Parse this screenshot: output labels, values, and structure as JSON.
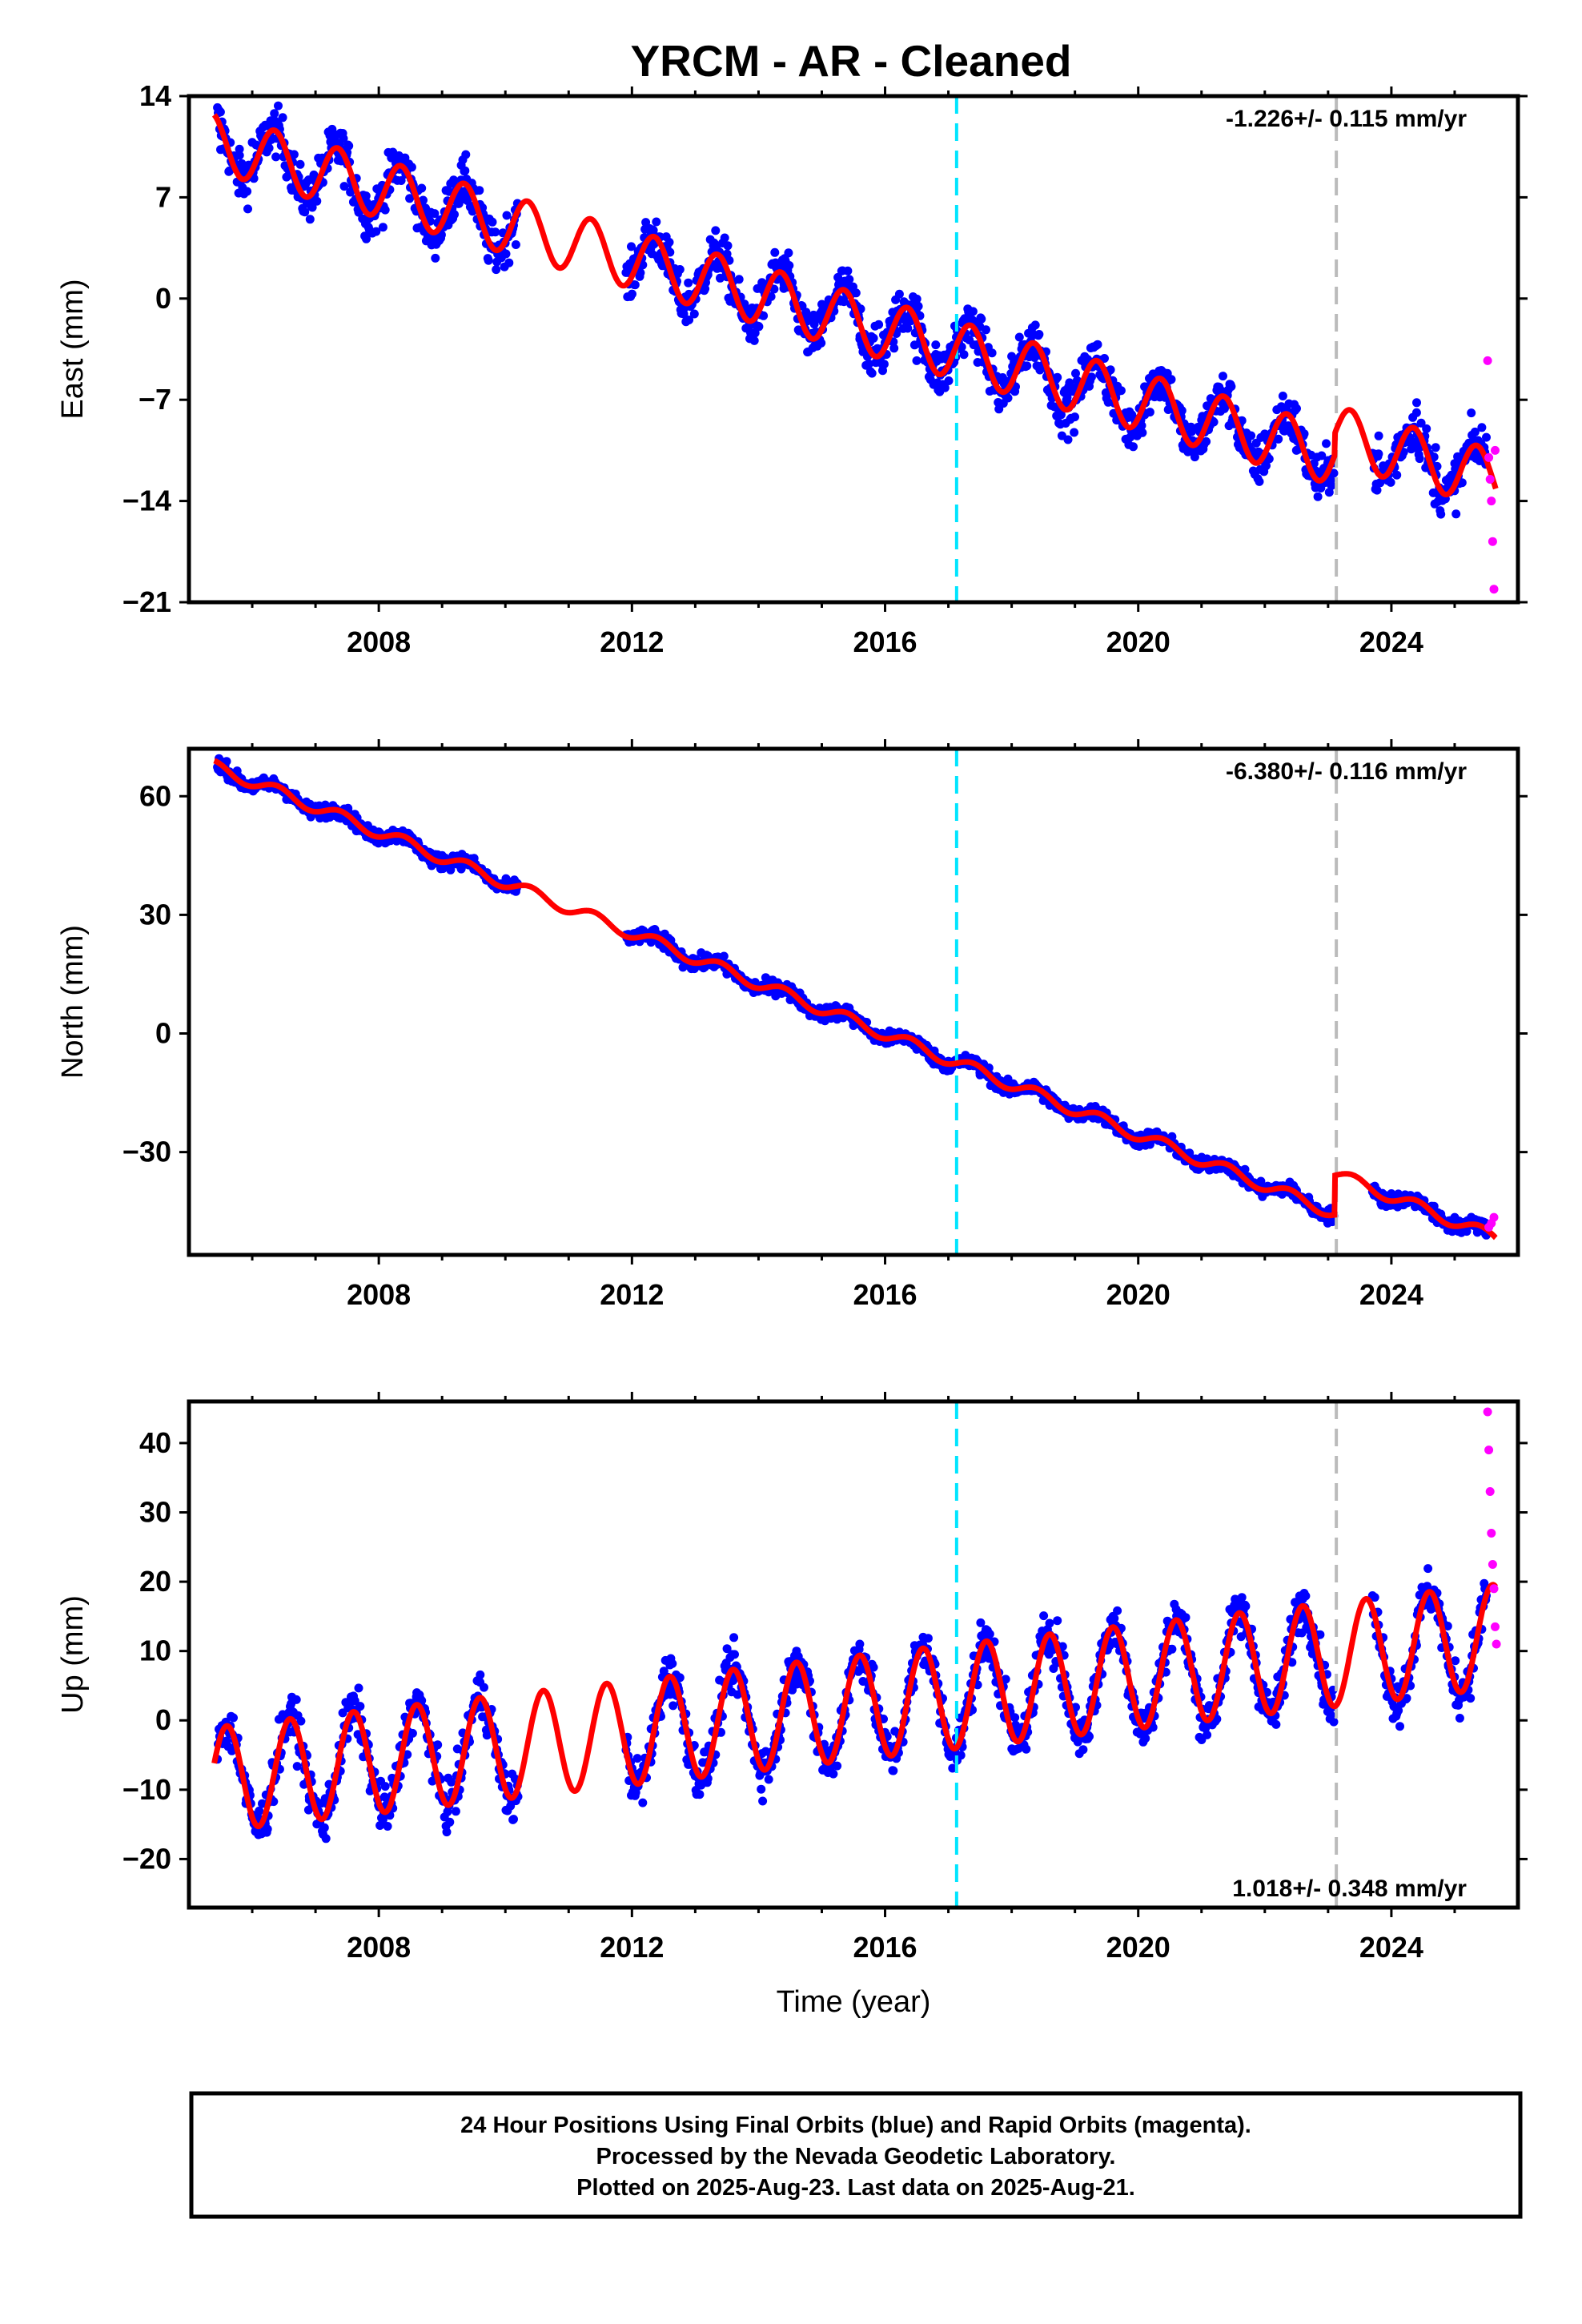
{
  "chart_data": [
    {
      "type": "scatter",
      "title": "YRCM  - AR - Cleaned",
      "ylabel": "East (mm)",
      "xlabel": "",
      "xlim": [
        2005.0,
        2026.0
      ],
      "ylim": [
        -21,
        14
      ],
      "yticks": [
        14,
        7,
        0,
        -7,
        -14,
        -21
      ],
      "ytick_labels": [
        "14",
        "7",
        "0",
        "−7",
        "−14",
        "−21"
      ],
      "xticks": [
        2008,
        2012,
        2016,
        2020,
        2024
      ],
      "xtick_labels": [
        "2008",
        "2012",
        "2016",
        "2020",
        "2024"
      ],
      "rate_text": "-1.226+/- 0.115 mm/yr",
      "rate_position": "top-right",
      "model": {
        "intercept_2005_4": 10.8,
        "slope": -1.226,
        "annual_amplitude": 2.0,
        "phase_peak_fraction": 0.35,
        "offset_at_2023_1": 1.5
      },
      "final_series": {
        "name": "Final Orbits",
        "color": "#0000ff",
        "t": [
          2005.5,
          2005.8,
          2006.0,
          2006.3,
          2006.6,
          2006.9,
          2007.2,
          2007.5,
          2007.8,
          2008.1,
          2008.4,
          2008.7,
          2009.0,
          2009.3,
          2009.6,
          2009.9,
          2010.1,
          2012.0,
          2012.3,
          2012.6,
          2012.9,
          2013.2,
          2013.5,
          2013.8,
          2014.1,
          2014.4,
          2014.7,
          2015.0,
          2015.3,
          2015.6,
          2015.9,
          2016.2,
          2016.5,
          2016.8,
          2017.1,
          2017.4,
          2017.7,
          2018.0,
          2018.3,
          2018.6,
          2018.9,
          2019.2,
          2019.5,
          2019.8,
          2020.1,
          2020.4,
          2020.7,
          2021.0,
          2021.3,
          2021.6,
          2021.9,
          2022.2,
          2022.5,
          2022.8,
          2023.0,
          2023.8,
          2024.1,
          2024.4,
          2024.7,
          2025.0,
          2025.3,
          2025.5
        ],
        "y": [
          10.3,
          9.9,
          10.8,
          11.8,
          9.0,
          8.2,
          9.9,
          10.1,
          7.1,
          7.4,
          9.0,
          6.8,
          5.1,
          8.2,
          6.5,
          3.7,
          4.5,
          2.3,
          3.5,
          3.2,
          0.3,
          1.9,
          1.5,
          -0.8,
          0.6,
          0.7,
          -2.2,
          -0.4,
          -0.1,
          -2.8,
          -1.8,
          -1.3,
          -4.3,
          -3.2,
          -1.9,
          -3.2,
          -5.4,
          -4.0,
          -3.0,
          -6.5,
          -6.1,
          -4.2,
          -6.9,
          -7.9,
          -6.1,
          -6.5,
          -9.0,
          -8.4,
          -7.8,
          -10.3,
          -10.6,
          -8.8,
          -10.5,
          -11.9,
          -11.2,
          -9.5,
          -9.6,
          -7.2,
          -10.3,
          -11.4,
          -10.2,
          -9.6
        ]
      },
      "rapid_series": {
        "name": "Rapid Orbits",
        "color": "#ff00ff",
        "t": [
          2025.52,
          2025.54,
          2025.56,
          2025.58,
          2025.6,
          2025.62,
          2025.64
        ],
        "y": [
          -4.3,
          -11.0,
          -12.5,
          -14.0,
          -16.8,
          -20.1,
          -10.5
        ]
      }
    },
    {
      "type": "scatter",
      "ylabel": "North (mm)",
      "xlabel": "",
      "xlim": [
        2005.0,
        2026.0
      ],
      "ylim": [
        -56,
        72
      ],
      "yticks": [
        60,
        30,
        0,
        -30
      ],
      "ytick_labels": [
        "60",
        "30",
        "0",
        "−30"
      ],
      "xticks": [
        2008,
        2012,
        2016,
        2020,
        2024
      ],
      "xtick_labels": [
        "2008",
        "2012",
        "2016",
        "2020",
        "2024"
      ],
      "rate_text": "-6.380+/- 0.116 mm/yr",
      "rate_position": "top-right",
      "model": {
        "intercept_2005_4": 67.5,
        "slope": -6.38,
        "annual_amplitude": 1.5,
        "phase_peak_fraction": 0.4,
        "offset_at_2023_1": 10.0
      },
      "final_series": {
        "name": "Final Orbits",
        "color": "#0000ff",
        "t": [
          2005.5,
          2006.0,
          2006.5,
          2007.0,
          2007.5,
          2008.0,
          2008.5,
          2009.0,
          2009.5,
          2010.0,
          2012.0,
          2012.5,
          2013.0,
          2013.5,
          2014.0,
          2014.5,
          2015.0,
          2015.5,
          2016.0,
          2016.5,
          2017.0,
          2017.5,
          2018.0,
          2018.5,
          2019.0,
          2019.5,
          2020.0,
          2020.5,
          2021.0,
          2021.5,
          2022.0,
          2022.5,
          2023.0,
          2024.0,
          2024.5,
          2025.0,
          2025.5
        ],
        "y": [
          67.0,
          63.5,
          61.0,
          57.5,
          54.5,
          51.0,
          48.0,
          45.0,
          41.5,
          38.0,
          25.0,
          21.5,
          18.0,
          15.0,
          11.5,
          8.5,
          5.5,
          2.0,
          -1.0,
          -4.0,
          -7.0,
          -10.5,
          -13.5,
          -17.0,
          -20.0,
          -23.0,
          -26.0,
          -29.0,
          -33.0,
          -36.0,
          -39.0,
          -42.0,
          -45.0,
          -40.5,
          -44.0,
          -46.5,
          -51.0
        ]
      },
      "rapid_series": {
        "name": "Rapid Orbits",
        "color": "#ff00ff",
        "t": [
          2025.54,
          2025.58,
          2025.62
        ],
        "y": [
          -49.0,
          -48.0,
          -46.5
        ]
      }
    },
    {
      "type": "scatter",
      "ylabel": "Up (mm)",
      "xlabel": "Time (year)",
      "xlim": [
        2005.0,
        2026.0
      ],
      "ylim": [
        -27,
        46
      ],
      "yticks": [
        40,
        30,
        20,
        10,
        0,
        -10,
        -20
      ],
      "ytick_labels": [
        "40",
        "30",
        "20",
        "10",
        "0",
        "−10",
        "−20"
      ],
      "xticks": [
        2008,
        2012,
        2016,
        2020,
        2024
      ],
      "xtick_labels": [
        "2008",
        "2012",
        "2016",
        "2020",
        "2024"
      ],
      "rate_text": "1.018+/- 0.348 mm/yr",
      "rate_position": "bottom-right",
      "model": {
        "intercept_2005_4": -8.5,
        "slope": 1.018,
        "annual_amplitude": 7.5,
        "phase_peak_fraction": 0.6,
        "offset_at_2023_1": 0.0
      },
      "final_series": {
        "name": "Final Orbits",
        "color": "#0000ff",
        "t": [
          2005.5,
          2005.9,
          2006.2,
          2006.6,
          2006.9,
          2007.2,
          2007.6,
          2007.9,
          2008.2,
          2008.6,
          2008.9,
          2009.2,
          2009.6,
          2009.9,
          2010.2,
          2012.0,
          2012.3,
          2012.6,
          2012.9,
          2013.2,
          2013.6,
          2013.9,
          2014.2,
          2014.6,
          2014.9,
          2015.2,
          2015.6,
          2015.9,
          2016.2,
          2016.6,
          2016.9,
          2017.2,
          2017.6,
          2017.9,
          2018.2,
          2018.6,
          2018.9,
          2019.2,
          2019.6,
          2019.9,
          2020.2,
          2020.6,
          2020.9,
          2021.2,
          2021.6,
          2021.9,
          2022.2,
          2022.6,
          2022.9,
          2024.0,
          2024.3,
          2024.6,
          2024.9,
          2025.2,
          2025.5
        ],
        "y": [
          -3.0,
          -12.0,
          -14.5,
          2.0,
          -11.0,
          -13.5,
          3.5,
          -9.5,
          -12.0,
          4.0,
          -8.5,
          -11.5,
          5.5,
          -7.0,
          -11.0,
          -7.5,
          -6.0,
          8.0,
          -4.5,
          -6.0,
          9.5,
          -3.5,
          -5.0,
          10.0,
          -2.5,
          -4.5,
          11.0,
          -1.5,
          -4.0,
          12.0,
          -0.5,
          -2.0,
          13.0,
          0.5,
          -1.5,
          14.0,
          1.0,
          -0.5,
          15.0,
          2.0,
          0.5,
          16.0,
          3.0,
          1.0,
          16.5,
          4.0,
          2.0,
          17.5,
          5.0,
          6.0,
          5.0,
          17.5,
          8.0,
          5.5,
          18.0
        ]
      },
      "rapid_series": {
        "name": "Rapid Orbits",
        "color": "#ff00ff",
        "t": [
          2025.52,
          2025.54,
          2025.56,
          2025.58,
          2025.6,
          2025.62,
          2025.64,
          2025.66
        ],
        "y": [
          44.5,
          39.0,
          33.0,
          27.0,
          22.5,
          19.0,
          13.5,
          11.0
        ]
      }
    }
  ],
  "vertical_lines": [
    {
      "t": 2017.13,
      "color": "#00e5ff"
    },
    {
      "t": 2023.13,
      "color": "#bbbbbb"
    }
  ],
  "colors": {
    "final": "#0000ff",
    "rapid": "#ff00ff",
    "model": "#ff0000",
    "frame": "#000000"
  },
  "footer": {
    "line1": "24 Hour Positions Using Final Orbits (blue) and Rapid Orbits (magenta).",
    "line2": "Processed by the Nevada Geodetic Laboratory.",
    "line3": "Plotted on 2025-Aug-23. Last data on 2025-Aug-21."
  }
}
